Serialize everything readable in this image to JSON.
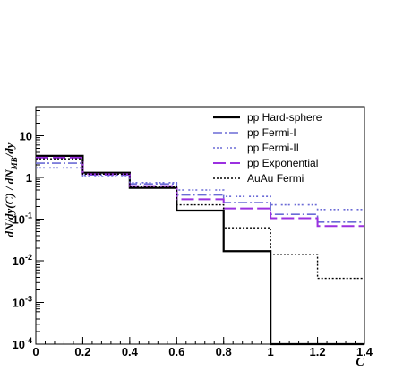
{
  "chart_data": {
    "type": "step",
    "xlabel": "C",
    "ylabel_parts": {
      "main": "dN/dy(C) / dN",
      "sub": "MB",
      "tail": "/dy"
    },
    "xlim": [
      0,
      1.4
    ],
    "ylim": [
      0.0001,
      50
    ],
    "yscale": "log",
    "grid": false,
    "legend_position": "top-right",
    "bin_edges": [
      0,
      0.2,
      0.4,
      0.6,
      0.8,
      1.0,
      1.2,
      1.4
    ],
    "x_ticks": [
      {
        "value": 0,
        "label": "0"
      },
      {
        "value": 0.2,
        "label": "0.2"
      },
      {
        "value": 0.4,
        "label": "0.4"
      },
      {
        "value": 0.6,
        "label": "0.6"
      },
      {
        "value": 0.8,
        "label": "0.8"
      },
      {
        "value": 1.0,
        "label": "1"
      },
      {
        "value": 1.2,
        "label": "1.2"
      },
      {
        "value": 1.4,
        "label": "1.4"
      }
    ],
    "y_ticks": [
      {
        "value": 0.0001,
        "base": "10",
        "exp": "-4"
      },
      {
        "value": 0.001,
        "base": "10",
        "exp": "-3"
      },
      {
        "value": 0.01,
        "base": "10",
        "exp": "-2"
      },
      {
        "value": 0.1,
        "base": "10",
        "exp": "-1"
      },
      {
        "value": 1,
        "base": "1",
        "exp": ""
      },
      {
        "value": 10,
        "base": "10",
        "exp": ""
      }
    ],
    "series": [
      {
        "name": "pp Hard-sphere",
        "color": "#000000",
        "dash": "",
        "width": 2.2,
        "values": [
          3.3,
          1.3,
          0.56,
          0.16,
          0.017,
          0.0001,
          0.0001
        ]
      },
      {
        "name": "pp Fermi-I",
        "color": "#6b6bd6",
        "dash": "10,3,2,3",
        "width": 1.6,
        "values": [
          2.2,
          1.15,
          0.7,
          0.38,
          0.25,
          0.13,
          0.085
        ]
      },
      {
        "name": "pp Fermi-II",
        "color": "#6b6bd6",
        "dash": "2,2,2,2,2,5",
        "width": 1.6,
        "values": [
          1.7,
          1.05,
          0.75,
          0.5,
          0.35,
          0.22,
          0.17
        ]
      },
      {
        "name": "pp Exponential",
        "color": "#9b30e0",
        "dash": "14,5",
        "width": 2.0,
        "values": [
          3.0,
          1.2,
          0.62,
          0.3,
          0.18,
          0.105,
          0.068
        ]
      },
      {
        "name": "AuAu Fermi",
        "color": "#000000",
        "dash": "2,2",
        "width": 1.4,
        "values": [
          2.8,
          1.2,
          0.6,
          0.22,
          0.062,
          0.014,
          0.0038
        ]
      }
    ]
  }
}
